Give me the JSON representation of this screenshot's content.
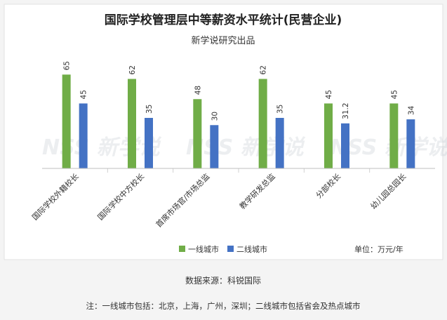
{
  "chart_data": {
    "type": "bar",
    "title": "国际学校管理层中等薪资水平统计(民营企业)",
    "subtitle": "新学说研究出品",
    "categories": [
      "国际学校外籍校长",
      "国际学校中方校长",
      "首席市场官/市场总监",
      "教学研发总监",
      "分部校长",
      "幼儿园总园长"
    ],
    "series": [
      {
        "name": "一线城市",
        "values": [
          65,
          62,
          48,
          62,
          45,
          45
        ],
        "labels": [
          "65",
          "62",
          "48",
          "62",
          "45",
          "45"
        ],
        "color": "#70ad47"
      },
      {
        "name": "二线城市",
        "values": [
          45,
          35,
          30,
          35,
          31.2,
          34
        ],
        "labels": [
          "45",
          "35",
          "30",
          "35",
          "31.2",
          "34"
        ],
        "color": "#4472c4"
      }
    ],
    "ylim": [
      0,
      70
    ],
    "unit_label": "单位：万元/年",
    "legend_position": "bottom",
    "watermark": "NSS 新学说"
  },
  "footer": {
    "source": "数据来源：科锐国际",
    "note": "注：一线城市包括：北京，上海，广州，深圳；二线城市包括省会及热点城市"
  }
}
